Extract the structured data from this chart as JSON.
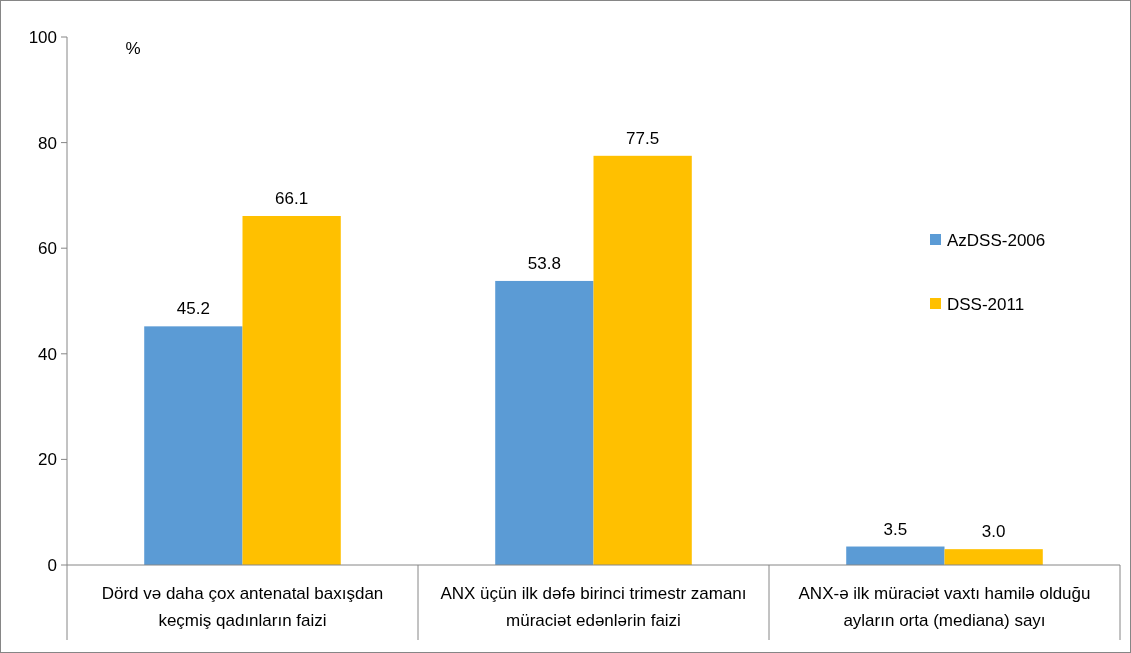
{
  "chart_data": {
    "type": "bar",
    "ylabel": "%",
    "categories": [
      "Dörd və daha çox antenatal baxışdan keçmiş qadınların faizi",
      "ANX üçün ilk dəfə birinci trimestr zamanı müraciət edənlərin faizi",
      "ANX-ə ilk müraciət vaxtı hamilə olduğu ayların orta (mediana) sayı"
    ],
    "series": [
      {
        "name": "AzDSS-2006",
        "color": "#5b9bd5",
        "values": [
          45.2,
          53.8,
          3.5
        ],
        "value_labels": [
          "45.2",
          "53.8",
          "3.5"
        ]
      },
      {
        "name": "DSS-2011",
        "color": "#ffc000",
        "values": [
          66.1,
          77.5,
          3.0
        ],
        "value_labels": [
          "66.1",
          "77.5",
          "3.0"
        ]
      }
    ],
    "ylim": [
      0,
      100
    ],
    "yticks": [
      0,
      20,
      40,
      60,
      80,
      100
    ],
    "grid": false,
    "legend": "right"
  }
}
